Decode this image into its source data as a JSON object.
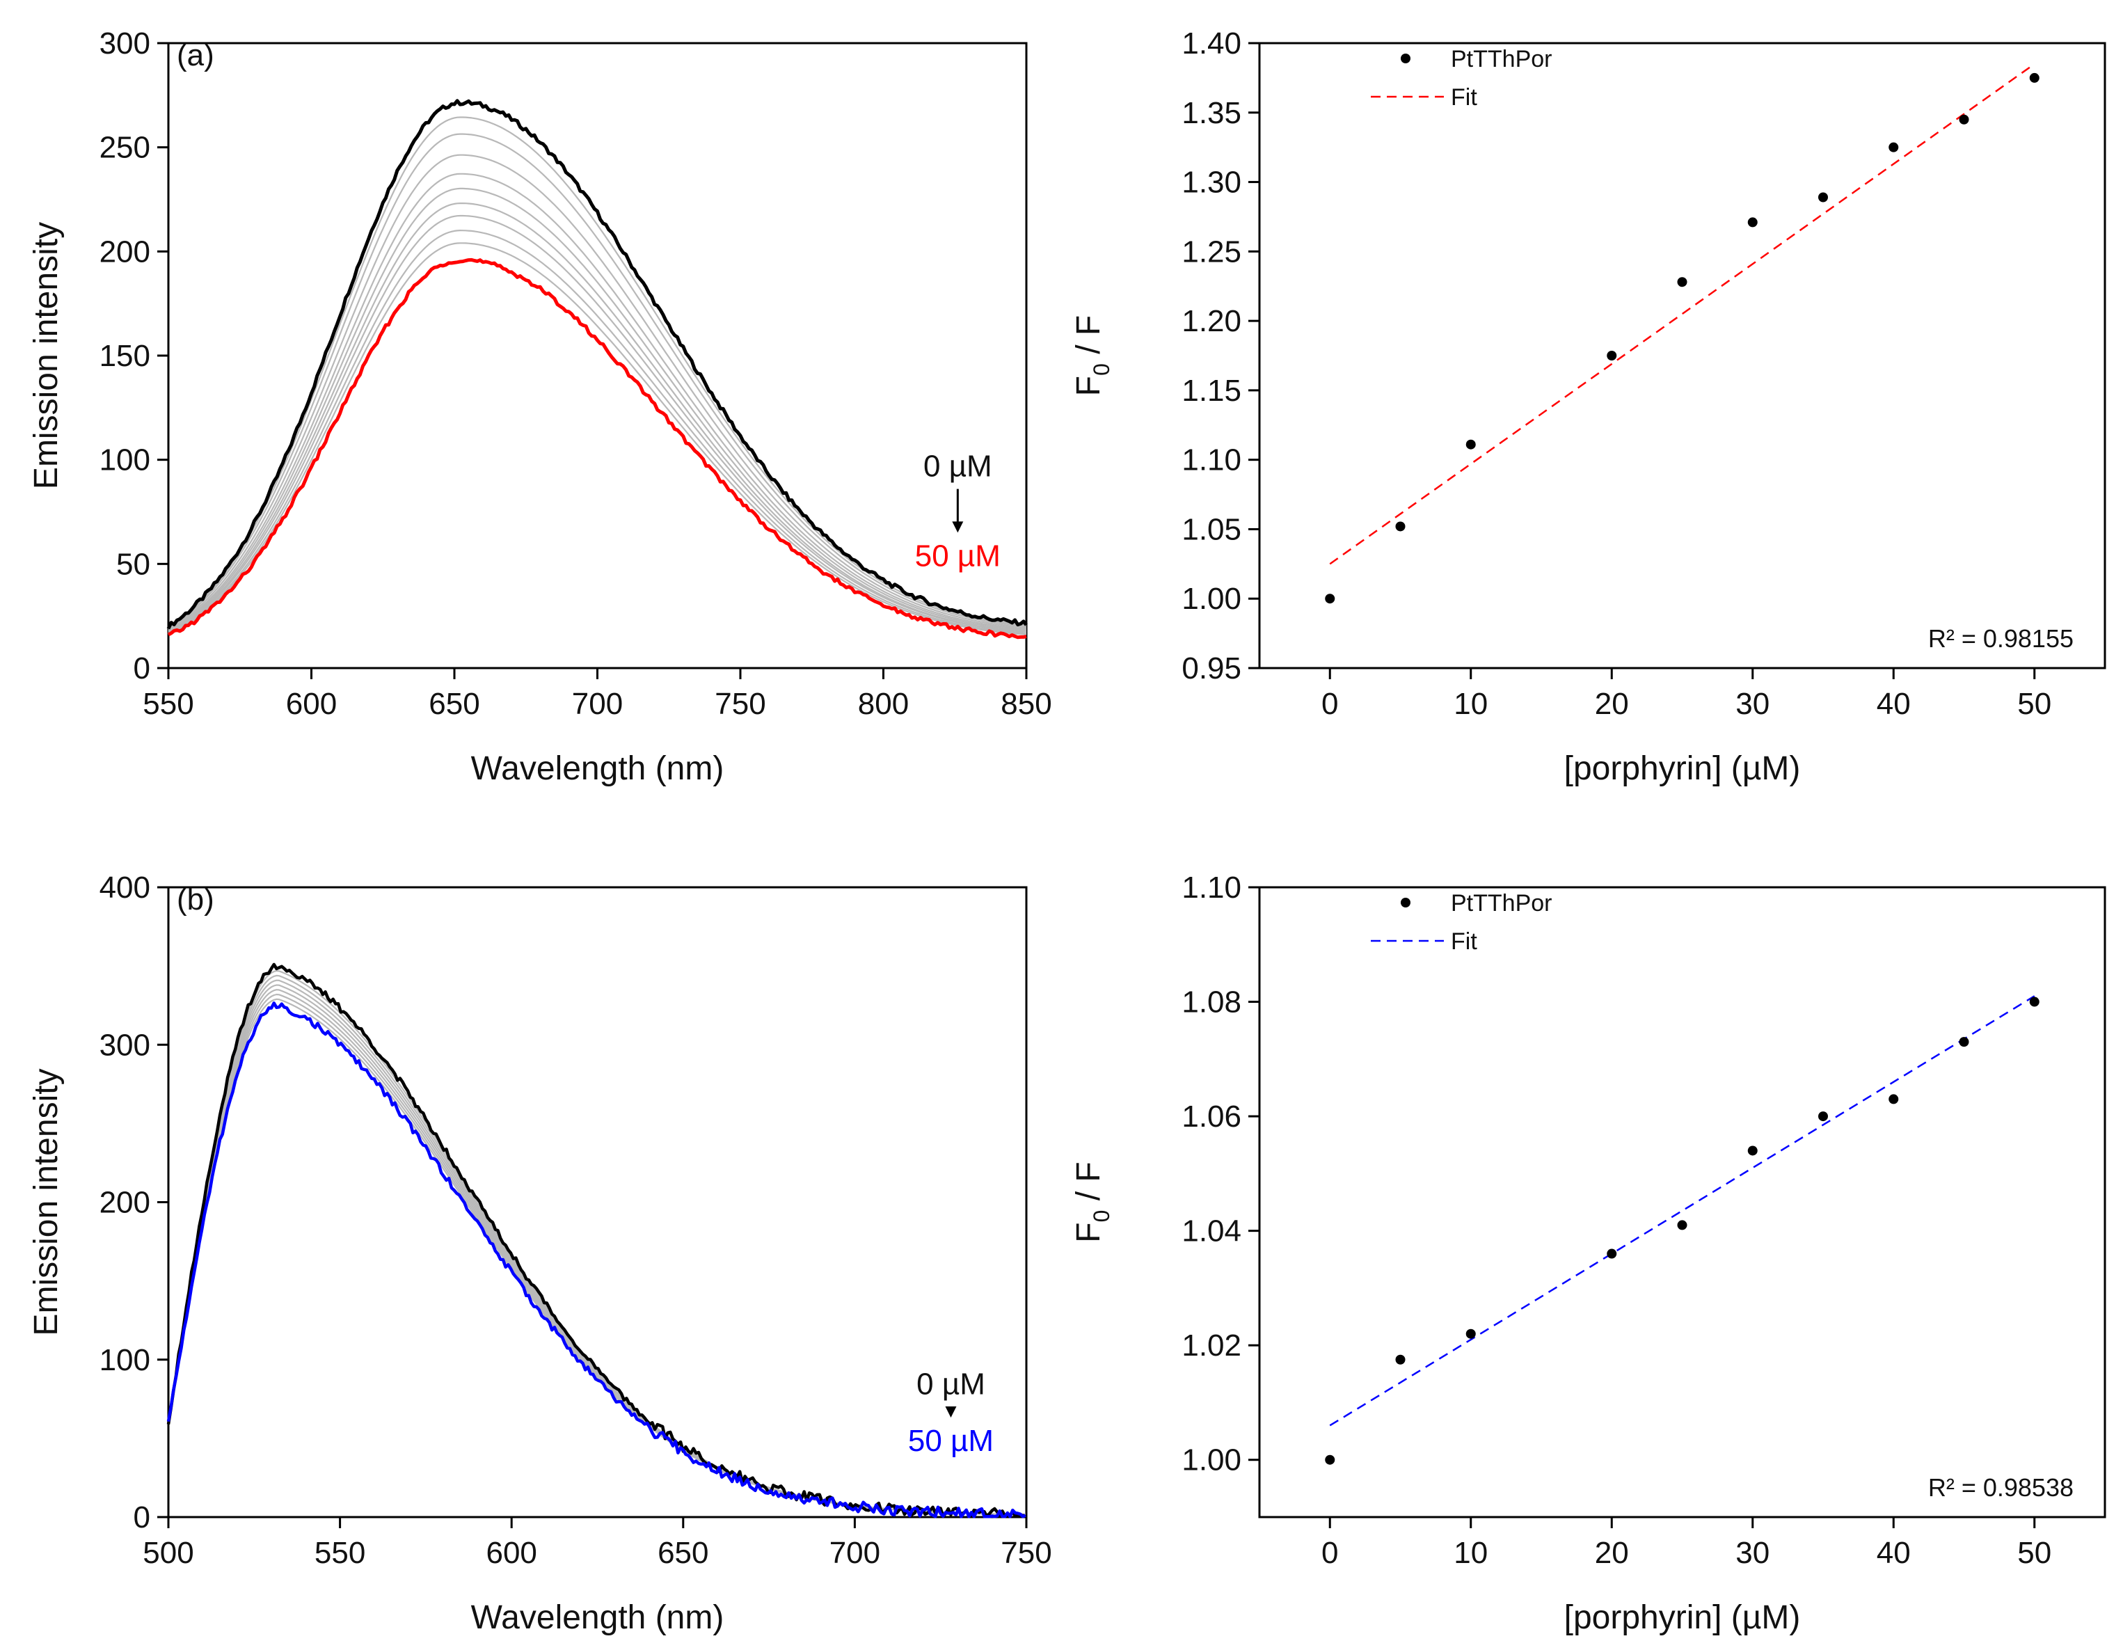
{
  "chart_data": [
    {
      "type": "line",
      "panel_label": "(a)",
      "xlabel": "Wavelength (nm)",
      "ylabel": "Emission intensity",
      "xlim": [
        550,
        850
      ],
      "ylim": [
        0,
        300
      ],
      "xticks": [
        550,
        600,
        650,
        700,
        750,
        800,
        850
      ],
      "yticks": [
        0,
        50,
        100,
        150,
        200,
        250,
        300
      ],
      "peak_x": 652,
      "tail_start": 4,
      "series": [
        {
          "name": "0 µM",
          "color": "#000000",
          "peak": 275,
          "tail_end": 16
        },
        {
          "peak": 268,
          "color": "#b8b8b8",
          "tail_end": 15.5
        },
        {
          "peak": 260,
          "color": "#b8b8b8",
          "tail_end": 15
        },
        {
          "peak": 250,
          "color": "#b8b8b8",
          "tail_end": 14.5
        },
        {
          "peak": 241,
          "color": "#b8b8b8",
          "tail_end": 14
        },
        {
          "peak": 234,
          "color": "#b8b8b8",
          "tail_end": 13.5
        },
        {
          "peak": 227,
          "color": "#b8b8b8",
          "tail_end": 13
        },
        {
          "peak": 221,
          "color": "#b8b8b8",
          "tail_end": 13
        },
        {
          "peak": 214,
          "color": "#b8b8b8",
          "tail_end": 12.5
        },
        {
          "peak": 208,
          "color": "#b8b8b8",
          "tail_end": 12
        },
        {
          "name": "50 µM",
          "color": "#ff0000",
          "peak": 200,
          "tail_end": 11
        }
      ],
      "arrow": {
        "x": 826,
        "top_label": "0 µM",
        "bottom_label": "50 µM",
        "top_y": 92,
        "bottom_y": 49
      }
    },
    {
      "type": "scatter",
      "xlabel": "[porphyrin] (µM)",
      "ylabel_main": "F",
      "ylabel_sub": "0",
      "ylabel_rest": " / F",
      "xlim": [
        -5,
        55
      ],
      "ylim": [
        0.95,
        1.4
      ],
      "xticks": [
        0,
        10,
        20,
        30,
        40,
        50
      ],
      "yticks": [
        "0.95",
        "1.00",
        "1.05",
        "1.10",
        "1.15",
        "1.20",
        "1.25",
        "1.30",
        "1.35",
        "1.40"
      ],
      "series": [
        {
          "name": "PtTThPor",
          "x": [
            0,
            5,
            10,
            20,
            25,
            30,
            35,
            40,
            45,
            50
          ],
          "y": [
            1.0,
            1.052,
            1.111,
            1.175,
            1.228,
            1.271,
            1.289,
            1.325,
            1.345,
            1.375
          ]
        }
      ],
      "fit": {
        "name": "Fit",
        "color": "#ff0000",
        "x": [
          0,
          50
        ],
        "y": [
          1.025,
          1.385
        ]
      },
      "r2_text": "R² = 0.98155"
    },
    {
      "type": "line",
      "panel_label": "(b)",
      "xlabel": "Wavelength (nm)",
      "ylabel": "Emission intensity",
      "xlim": [
        500,
        750
      ],
      "ylim": [
        0,
        400
      ],
      "xticks": [
        500,
        550,
        600,
        650,
        700,
        750
      ],
      "yticks": [
        0,
        100,
        200,
        300,
        400
      ],
      "peak_x": 532,
      "start_y": 60,
      "series": [
        {
          "name": "0 µM",
          "color": "#000000",
          "peak": 350
        },
        {
          "peak": 347,
          "color": "#b8b8b8"
        },
        {
          "peak": 344,
          "color": "#b8b8b8"
        },
        {
          "peak": 341,
          "color": "#b8b8b8"
        },
        {
          "peak": 338,
          "color": "#b8b8b8"
        },
        {
          "peak": 335,
          "color": "#b8b8b8"
        },
        {
          "peak": 332,
          "color": "#b8b8b8"
        },
        {
          "peak": 329,
          "color": "#b8b8b8"
        },
        {
          "name": "50 µM",
          "color": "#0000ff",
          "peak": 325
        }
      ],
      "arrow": {
        "x": 728,
        "top_label": "0 µM",
        "bottom_label": "50 µM",
        "top_y": 78,
        "bottom_y": 42
      }
    },
    {
      "type": "scatter",
      "xlabel": "[porphyrin] (µM)",
      "ylabel_main": "F",
      "ylabel_sub": "0",
      "ylabel_rest": " / F",
      "xlim": [
        -5,
        55
      ],
      "ylim": [
        0.99,
        1.1
      ],
      "xticks": [
        0,
        10,
        20,
        30,
        40,
        50
      ],
      "yticks": [
        "1.00",
        "1.02",
        "1.04",
        "1.06",
        "1.08",
        "1.10"
      ],
      "series": [
        {
          "name": "PtTThPor",
          "x": [
            0,
            5,
            10,
            20,
            25,
            30,
            35,
            40,
            45,
            50
          ],
          "y": [
            1.0,
            1.0175,
            1.022,
            1.036,
            1.041,
            1.054,
            1.06,
            1.063,
            1.073,
            1.08
          ]
        }
      ],
      "fit": {
        "name": "Fit",
        "color": "#0000ff",
        "x": [
          0,
          50
        ],
        "y": [
          1.006,
          1.081
        ]
      },
      "r2_text": "R² = 0.98538"
    }
  ]
}
